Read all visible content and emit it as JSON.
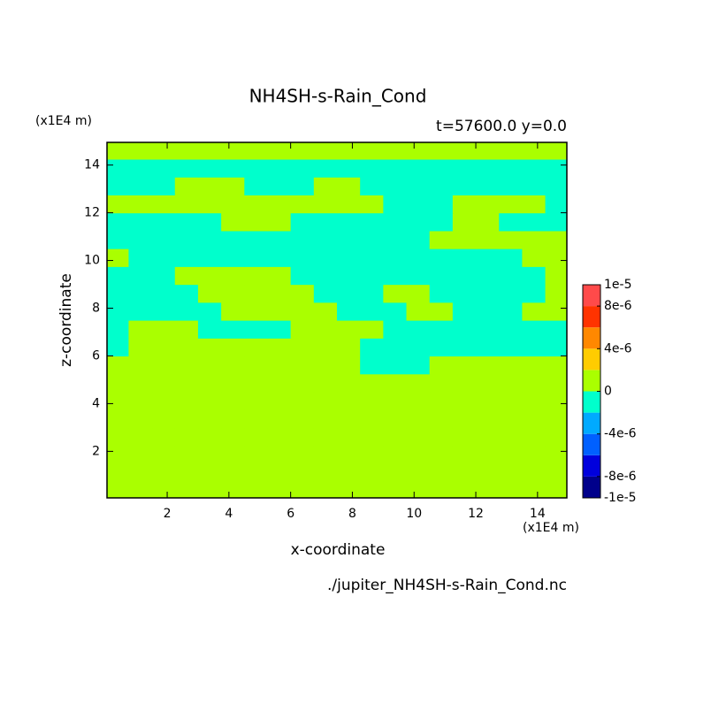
{
  "chart_data": {
    "type": "heatmap",
    "title": "NH4SH-s-Rain_Cond",
    "subtitle": "t=57600.0 y=0.0",
    "x_label": "x-coordinate",
    "y_label": "z-coordinate",
    "x_unit": "(x1E4 m)",
    "y_unit": "(x1E4 m)",
    "source": "./jupiter_NH4SH-s-Rain_Cond.nc",
    "xlim": [
      0.05,
      14.95
    ],
    "ylim": [
      0.05,
      14.95
    ],
    "xticks": [
      2,
      4,
      6,
      8,
      10,
      12,
      14
    ],
    "yticks": [
      2,
      4,
      6,
      8,
      10,
      12,
      14
    ],
    "xbins": [
      0,
      0.75,
      1.5,
      2.25,
      3,
      3.75,
      4.5,
      5.25,
      6,
      6.75,
      7.5,
      8.25,
      9,
      9.75,
      10.5,
      11.25,
      12,
      12.75,
      13.5,
      14.25,
      15
    ],
    "ybins": [
      0,
      0.75,
      1.5,
      2.25,
      3,
      3.75,
      4.5,
      5.25,
      6,
      6.75,
      7.5,
      8.25,
      9,
      9.75,
      10.5,
      11.25,
      12,
      12.75,
      13.5,
      14.25,
      15
    ],
    "values": [
      [
        1e-06,
        1e-06,
        1e-06,
        1e-06,
        1e-06,
        1e-06,
        1e-06,
        1e-06,
        1e-06,
        1e-06,
        1e-06,
        1e-06,
        1e-06,
        1e-06,
        1e-06,
        1e-06,
        1e-06,
        1e-06,
        1e-06,
        1e-06
      ],
      [
        1e-06,
        1e-06,
        1e-06,
        1e-06,
        1e-06,
        1e-06,
        1e-06,
        1e-06,
        1e-06,
        1e-06,
        1e-06,
        1e-06,
        1e-06,
        1e-06,
        1e-06,
        1e-06,
        1e-06,
        1e-06,
        1e-06,
        1e-06
      ],
      [
        1e-06,
        1e-06,
        1e-06,
        1e-06,
        1e-06,
        1e-06,
        1e-06,
        1e-06,
        1e-06,
        1e-06,
        1e-06,
        1e-06,
        1e-06,
        1e-06,
        1e-06,
        1e-06,
        1e-06,
        1e-06,
        1e-06,
        1e-06
      ],
      [
        1e-06,
        1e-06,
        1e-06,
        1e-06,
        1e-06,
        1e-06,
        1e-06,
        1e-06,
        1e-06,
        1e-06,
        1e-06,
        1e-06,
        1e-06,
        1e-06,
        1e-06,
        1e-06,
        1e-06,
        1e-06,
        1e-06,
        1e-06
      ],
      [
        1e-06,
        1e-06,
        1e-06,
        1e-06,
        1e-06,
        1e-06,
        1e-06,
        1e-06,
        1e-06,
        1e-06,
        1e-06,
        1e-06,
        1e-06,
        1e-06,
        1e-06,
        1e-06,
        1e-06,
        1e-06,
        1e-06,
        1e-06
      ],
      [
        1e-06,
        1e-06,
        1e-06,
        1e-06,
        1e-06,
        1e-06,
        1e-06,
        1e-06,
        1e-06,
        1e-06,
        1e-06,
        1e-06,
        1e-06,
        1e-06,
        1e-06,
        1e-06,
        1e-06,
        1e-06,
        1e-06,
        1e-06
      ],
      [
        1e-06,
        1e-06,
        1e-06,
        1e-06,
        1e-06,
        1e-06,
        1e-06,
        1e-06,
        1e-06,
        1e-06,
        1e-06,
        1e-06,
        1e-06,
        1e-06,
        1e-06,
        1e-06,
        1e-06,
        1e-06,
        1e-06,
        1e-06
      ],
      [
        1e-06,
        1e-06,
        1e-06,
        1e-06,
        1e-06,
        1e-06,
        1e-06,
        1e-06,
        1e-06,
        1e-06,
        1e-06,
        -1e-06,
        -1e-06,
        -1e-06,
        1e-06,
        1e-06,
        1e-06,
        1e-06,
        1e-06,
        1e-06
      ],
      [
        -1e-06,
        1e-06,
        1e-06,
        1e-06,
        1e-06,
        1e-06,
        1e-06,
        1e-06,
        1e-06,
        1e-06,
        1e-06,
        -1e-06,
        -1e-06,
        -1e-06,
        -1e-06,
        -1e-06,
        -1e-06,
        -1e-06,
        -1e-06,
        -1e-06
      ],
      [
        -1e-06,
        1e-06,
        1e-06,
        1e-06,
        -1e-06,
        -1e-06,
        -1e-06,
        -1e-06,
        1e-06,
        1e-06,
        1e-06,
        1e-06,
        -1e-06,
        -1e-06,
        -1e-06,
        -1e-06,
        -1e-06,
        -1e-06,
        -1e-06,
        -1e-06
      ],
      [
        -1e-06,
        -1e-06,
        -1e-06,
        -1e-06,
        -1e-06,
        1e-06,
        1e-06,
        1e-06,
        1e-06,
        1e-06,
        -1e-06,
        -1e-06,
        -1e-06,
        1e-06,
        1e-06,
        -1e-06,
        -1e-06,
        -1e-06,
        1e-06,
        1e-06
      ],
      [
        -1e-06,
        -1e-06,
        -1e-06,
        -1e-06,
        1e-06,
        1e-06,
        1e-06,
        1e-06,
        1e-06,
        -1e-06,
        -1e-06,
        -1e-06,
        1e-06,
        1e-06,
        -1e-06,
        -1e-06,
        -1e-06,
        -1e-06,
        -1e-06,
        1e-06
      ],
      [
        -1e-06,
        -1e-06,
        -1e-06,
        1e-06,
        1e-06,
        1e-06,
        1e-06,
        1e-06,
        -1e-06,
        -1e-06,
        -1e-06,
        -1e-06,
        -1e-06,
        -1e-06,
        -1e-06,
        -1e-06,
        -1e-06,
        -1e-06,
        -1e-06,
        1e-06
      ],
      [
        1e-06,
        -1e-06,
        -1e-06,
        -1e-06,
        -1e-06,
        -1e-06,
        -1e-06,
        -1e-06,
        -1e-06,
        -1e-06,
        -1e-06,
        -1e-06,
        -1e-06,
        -1e-06,
        -1e-06,
        -1e-06,
        -1e-06,
        -1e-06,
        1e-06,
        1e-06
      ],
      [
        -1e-06,
        -1e-06,
        -1e-06,
        -1e-06,
        -1e-06,
        -1e-06,
        -1e-06,
        -1e-06,
        -1e-06,
        -1e-06,
        -1e-06,
        -1e-06,
        -1e-06,
        -1e-06,
        1e-06,
        1e-06,
        1e-06,
        1e-06,
        1e-06,
        1e-06
      ],
      [
        -1e-06,
        -1e-06,
        -1e-06,
        -1e-06,
        -1e-06,
        1e-06,
        1e-06,
        1e-06,
        -1e-06,
        -1e-06,
        -1e-06,
        -1e-06,
        -1e-06,
        -1e-06,
        -1e-06,
        1e-06,
        1e-06,
        -1e-06,
        -1e-06,
        -1e-06
      ],
      [
        1e-06,
        1e-06,
        1e-06,
        1e-06,
        1e-06,
        1e-06,
        1e-06,
        1e-06,
        1e-06,
        1e-06,
        1e-06,
        1e-06,
        -1e-06,
        -1e-06,
        -1e-06,
        1e-06,
        1e-06,
        1e-06,
        1e-06,
        -1e-06
      ],
      [
        -1e-06,
        -1e-06,
        -1e-06,
        1e-06,
        1e-06,
        1e-06,
        -1e-06,
        -1e-06,
        -1e-06,
        1e-06,
        1e-06,
        -1e-06,
        -1e-06,
        -1e-06,
        -1e-06,
        -1e-06,
        -1e-06,
        -1e-06,
        -1e-06,
        -1e-06
      ],
      [
        -1e-06,
        -1e-06,
        -1e-06,
        -1e-06,
        -1e-06,
        -1e-06,
        -1e-06,
        -1e-06,
        -1e-06,
        -1e-06,
        -1e-06,
        -1e-06,
        -1e-06,
        -1e-06,
        -1e-06,
        -1e-06,
        -1e-06,
        -1e-06,
        -1e-06,
        -1e-06
      ],
      [
        1e-06,
        1e-06,
        1e-06,
        1e-06,
        1e-06,
        1e-06,
        1e-06,
        1e-06,
        1e-06,
        1e-06,
        1e-06,
        1e-06,
        1e-06,
        1e-06,
        1e-06,
        1e-06,
        1e-06,
        1e-06,
        1e-06,
        1e-06
      ]
    ],
    "levels": [
      -1e-05,
      -8e-06,
      -6e-06,
      -4e-06,
      -2e-06,
      0,
      2e-06,
      4e-06,
      6e-06,
      8e-06,
      1e-05
    ],
    "colors": [
      "#00008b",
      "#0000dd",
      "#0060ff",
      "#00aaff",
      "#00ffcc",
      "#aaff00",
      "#ffcc00",
      "#ff8800",
      "#ff3300",
      "#ff4a4a"
    ],
    "colorbar_ticks": [
      {
        "value": -1e-05,
        "label": "-1e-5"
      },
      {
        "value": -8e-06,
        "label": "-8e-6"
      },
      {
        "value": -4e-06,
        "label": "-4e-6"
      },
      0,
      {
        "value": 4e-06,
        "label": "4e-6"
      },
      {
        "value": 8e-06,
        "label": "8e-6"
      },
      {
        "value": 1e-05,
        "label": "1e-5"
      }
    ]
  }
}
